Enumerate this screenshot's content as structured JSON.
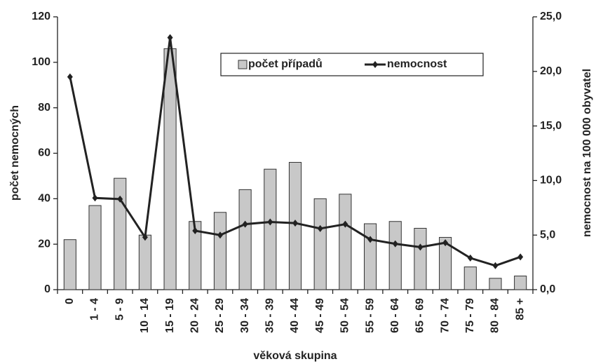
{
  "chart_data": {
    "type": "bar",
    "xlabel": "věková skupina",
    "ylabel": "počet nemocných",
    "y2label": "nemocnost na 100 000 obyvatel",
    "categories": [
      "0",
      "1 - 4",
      "5 - 9",
      "10 - 14",
      "15 - 19",
      "20 - 24",
      "25 - 29",
      "30 - 34",
      "35 - 39",
      "40 - 44",
      "45 - 49",
      "50 - 54",
      "55 - 59",
      "60 - 64",
      "65 - 69",
      "70 - 74",
      "75 - 79",
      "80 - 84",
      "85 +"
    ],
    "series": [
      {
        "name": "počet případů",
        "type": "bar",
        "color": "#c8c8c8",
        "values": [
          22,
          37,
          49,
          24,
          106,
          30,
          34,
          44,
          53,
          56,
          40,
          42,
          29,
          30,
          27,
          23,
          10,
          5,
          6
        ]
      },
      {
        "name": "nemocnost",
        "type": "line",
        "axis": "y2",
        "color": "#222222",
        "values": [
          19.5,
          8.4,
          8.3,
          4.8,
          23.1,
          5.4,
          5.0,
          6.0,
          6.2,
          6.1,
          5.6,
          6.0,
          4.6,
          4.2,
          3.9,
          4.3,
          2.9,
          2.2,
          3.0
        ]
      }
    ],
    "ylim": [
      0,
      120
    ],
    "yticks": [
      0,
      20,
      40,
      60,
      80,
      100,
      120
    ],
    "y2lim": [
      0,
      25
    ],
    "y2ticks": [
      {
        "value": 0,
        "label": "0,0"
      },
      {
        "value": 5,
        "label": "5,0"
      },
      {
        "value": 10,
        "label": "10,0"
      },
      {
        "value": 15,
        "label": "15,0"
      },
      {
        "value": 20,
        "label": "20,0"
      },
      {
        "value": 25,
        "label": "25,0"
      }
    ],
    "grid": false,
    "legend": "top"
  }
}
